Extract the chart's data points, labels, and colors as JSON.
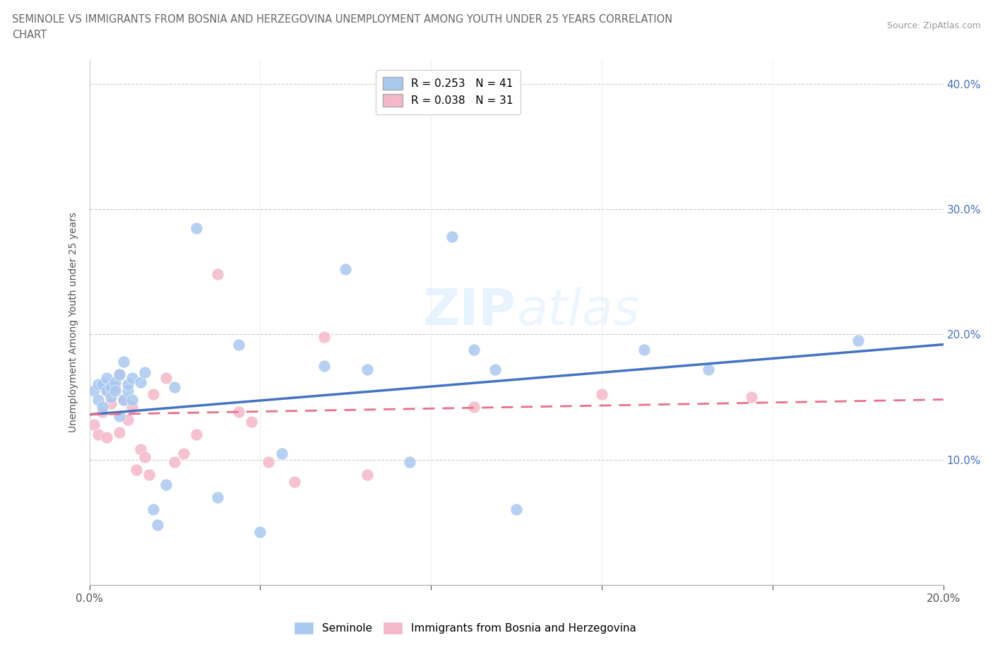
{
  "title_line1": "SEMINOLE VS IMMIGRANTS FROM BOSNIA AND HERZEGOVINA UNEMPLOYMENT AMONG YOUTH UNDER 25 YEARS CORRELATION",
  "title_line2": "CHART",
  "source": "Source: ZipAtlas.com",
  "ylabel": "Unemployment Among Youth under 25 years",
  "xlim": [
    0.0,
    0.2
  ],
  "ylim": [
    0.0,
    0.42
  ],
  "xticks": [
    0.0,
    0.04,
    0.08,
    0.12,
    0.16,
    0.2
  ],
  "yticks": [
    0.0,
    0.1,
    0.2,
    0.3,
    0.4
  ],
  "legend_r1": "R = 0.253   N = 41",
  "legend_r2": "R = 0.038   N = 31",
  "seminole_color": "#A8C8F0",
  "bosnia_color": "#F5B8C8",
  "seminole_line_color": "#4472C4",
  "bosnia_line_color": "#E8708A",
  "seminole_x": [
    0.001,
    0.002,
    0.002,
    0.003,
    0.003,
    0.004,
    0.004,
    0.005,
    0.005,
    0.006,
    0.006,
    0.007,
    0.007,
    0.008,
    0.008,
    0.009,
    0.009,
    0.01,
    0.01,
    0.012,
    0.013,
    0.015,
    0.016,
    0.018,
    0.02,
    0.025,
    0.03,
    0.035,
    0.04,
    0.045,
    0.055,
    0.06,
    0.065,
    0.075,
    0.085,
    0.09,
    0.095,
    0.1,
    0.13,
    0.145,
    0.18
  ],
  "seminole_y": [
    0.155,
    0.148,
    0.16,
    0.142,
    0.16,
    0.155,
    0.165,
    0.158,
    0.15,
    0.162,
    0.155,
    0.168,
    0.135,
    0.178,
    0.148,
    0.155,
    0.16,
    0.148,
    0.165,
    0.162,
    0.17,
    0.06,
    0.048,
    0.08,
    0.158,
    0.285,
    0.07,
    0.192,
    0.042,
    0.105,
    0.175,
    0.252,
    0.172,
    0.098,
    0.278,
    0.188,
    0.172,
    0.06,
    0.188,
    0.172,
    0.195
  ],
  "bosnia_x": [
    0.001,
    0.002,
    0.003,
    0.004,
    0.004,
    0.005,
    0.006,
    0.007,
    0.007,
    0.008,
    0.009,
    0.01,
    0.011,
    0.012,
    0.013,
    0.014,
    0.015,
    0.018,
    0.02,
    0.022,
    0.025,
    0.03,
    0.035,
    0.038,
    0.042,
    0.048,
    0.055,
    0.065,
    0.09,
    0.12,
    0.155
  ],
  "bosnia_y": [
    0.128,
    0.12,
    0.138,
    0.155,
    0.118,
    0.145,
    0.158,
    0.168,
    0.122,
    0.148,
    0.132,
    0.142,
    0.092,
    0.108,
    0.102,
    0.088,
    0.152,
    0.165,
    0.098,
    0.105,
    0.12,
    0.248,
    0.138,
    0.13,
    0.098,
    0.082,
    0.198,
    0.088,
    0.142,
    0.152,
    0.15
  ],
  "seminole_trend_x": [
    0.0,
    0.2
  ],
  "seminole_trend_y": [
    0.136,
    0.192
  ],
  "bosnia_trend_x": [
    0.0,
    0.2
  ],
  "bosnia_trend_y": [
    0.136,
    0.148
  ]
}
